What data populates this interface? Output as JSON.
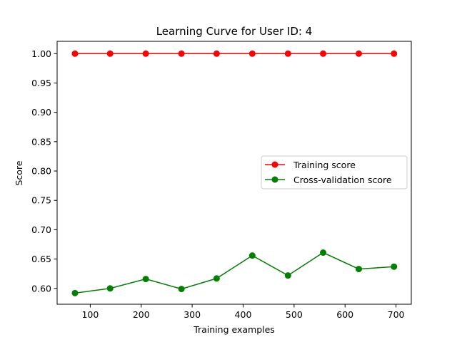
{
  "chart_data": {
    "type": "line",
    "title": "Learning Curve for User ID: 4",
    "xlabel": "Training examples",
    "ylabel": "Score",
    "xlim": [
      35,
      730
    ],
    "ylim": [
      0.573,
      1.021
    ],
    "xticks": [
      100,
      200,
      300,
      400,
      500,
      600,
      700
    ],
    "yticks": [
      0.6,
      0.65,
      0.7,
      0.75,
      0.8,
      0.85,
      0.9,
      0.95,
      1.0
    ],
    "grid": false,
    "legend": {
      "position": "center-right"
    },
    "x": [
      70,
      139,
      209,
      279,
      348,
      418,
      488,
      557,
      627,
      696
    ],
    "series": [
      {
        "name": "Training score",
        "color": "#ff0000",
        "values": [
          1.0,
          1.0,
          1.0,
          1.0,
          1.0,
          1.0,
          1.0,
          1.0,
          1.0,
          1.0
        ]
      },
      {
        "name": "Cross-validation score",
        "color": "#008000",
        "values": [
          0.592,
          0.6,
          0.616,
          0.599,
          0.617,
          0.656,
          0.622,
          0.661,
          0.633,
          0.637
        ]
      }
    ]
  }
}
